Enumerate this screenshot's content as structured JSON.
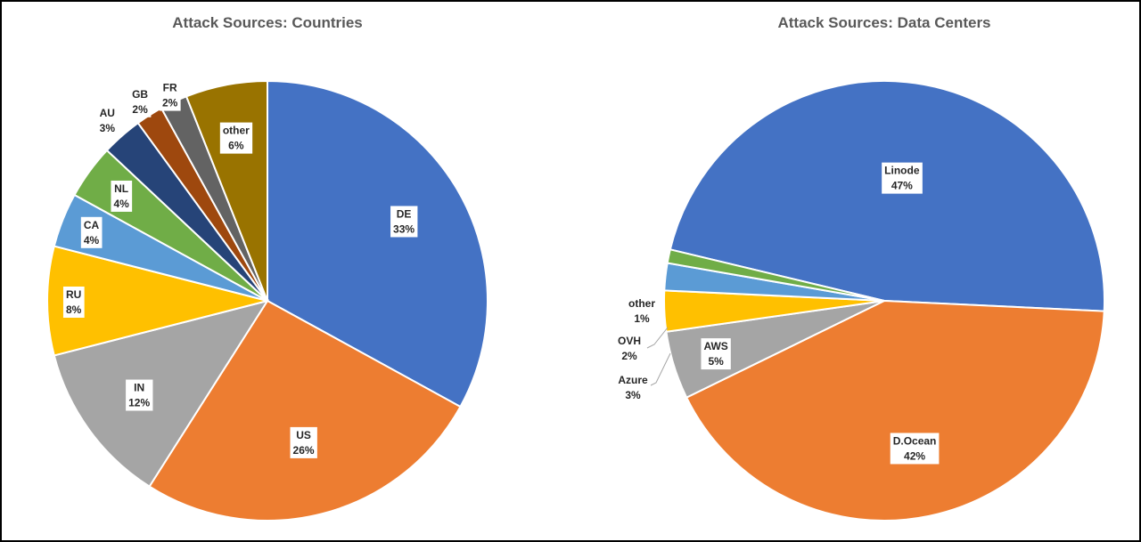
{
  "chart_data": [
    {
      "type": "pie",
      "title": "Attack Sources: Countries",
      "categories": [
        "DE",
        "US",
        "IN",
        "RU",
        "CA",
        "NL",
        "AU",
        "GB",
        "FR",
        "other"
      ],
      "values": [
        33,
        26,
        12,
        8,
        4,
        4,
        3,
        2,
        2,
        6
      ],
      "value_labels": [
        "33%",
        "26%",
        "12%",
        "8%",
        "4%",
        "4%",
        "3%",
        "2%",
        "2%",
        "6%"
      ],
      "colors": [
        "#4472C4",
        "#ED7D31",
        "#A5A5A5",
        "#FFC000",
        "#5B9BD5",
        "#70AD47",
        "#264478",
        "#9E480E",
        "#636363",
        "#997300"
      ],
      "legend": "none",
      "start_angle": "12 o'clock",
      "direction": "clockwise"
    },
    {
      "type": "pie",
      "title": "Attack Sources: Data Centers",
      "categories": [
        "Linode",
        "D.Ocean",
        "AWS",
        "Azure",
        "OVH",
        "other"
      ],
      "values": [
        47,
        42,
        5,
        3,
        2,
        1
      ],
      "value_labels": [
        "47%",
        "42%",
        "5%",
        "3%",
        "2%",
        "1%"
      ],
      "colors": [
        "#4472C4",
        "#ED7D31",
        "#A5A5A5",
        "#FFC000",
        "#5B9BD5",
        "#70AD47"
      ],
      "legend": "none",
      "start_angle": "about 11 o'clock",
      "direction": "clockwise"
    }
  ]
}
